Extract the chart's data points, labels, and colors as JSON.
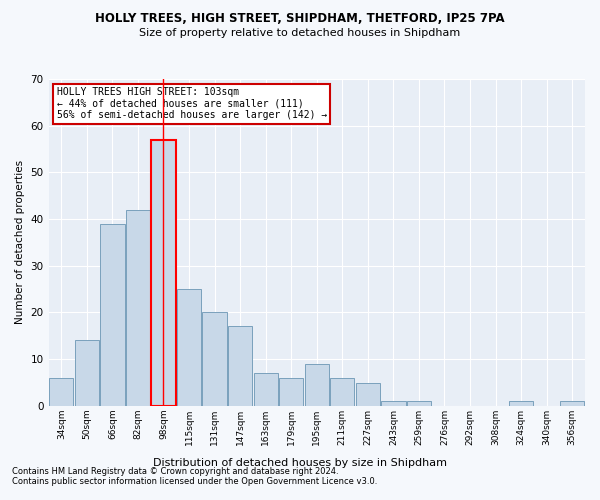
{
  "title": "HOLLY TREES, HIGH STREET, SHIPDHAM, THETFORD, IP25 7PA",
  "subtitle": "Size of property relative to detached houses in Shipdham",
  "xlabel": "Distribution of detached houses by size in Shipdham",
  "ylabel": "Number of detached properties",
  "bar_color": "#c8d8e8",
  "bar_edge_color": "#7aa0bc",
  "highlight_bar_edge_color": "#ff0000",
  "vline_color": "#ff0000",
  "vline_x": 4,
  "categories": [
    "34sqm",
    "50sqm",
    "66sqm",
    "82sqm",
    "98sqm",
    "115sqm",
    "131sqm",
    "147sqm",
    "163sqm",
    "179sqm",
    "195sqm",
    "211sqm",
    "227sqm",
    "243sqm",
    "259sqm",
    "276sqm",
    "292sqm",
    "308sqm",
    "324sqm",
    "340sqm",
    "356sqm"
  ],
  "values": [
    6,
    14,
    39,
    42,
    57,
    25,
    20,
    17,
    7,
    6,
    9,
    6,
    5,
    1,
    1,
    0,
    0,
    0,
    1,
    0,
    1
  ],
  "highlight_index": 4,
  "ylim": [
    0,
    70
  ],
  "yticks": [
    0,
    10,
    20,
    30,
    40,
    50,
    60,
    70
  ],
  "annotation_title": "HOLLY TREES HIGH STREET: 103sqm",
  "annotation_line1": "← 44% of detached houses are smaller (111)",
  "annotation_line2": "56% of semi-detached houses are larger (142) →",
  "annotation_box_color": "#ffffff",
  "annotation_box_edge_color": "#cc0000",
  "footnote1": "Contains HM Land Registry data © Crown copyright and database right 2024.",
  "footnote2": "Contains public sector information licensed under the Open Government Licence v3.0.",
  "background_color": "#f5f8fc",
  "plot_background_color": "#e8eef6"
}
